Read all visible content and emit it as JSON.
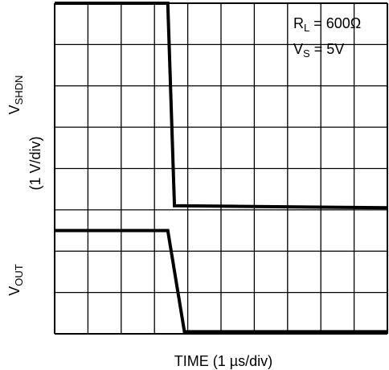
{
  "chart_data": {
    "type": "line",
    "title": "",
    "xlabel": "TIME (1 µs/div)",
    "ylabel_top": "V",
    "ylabel_top_sub": "SHDN",
    "ylabel_scale": "(1 V/div)",
    "ylabel_bottom": "V",
    "ylabel_bottom_sub": "OUT",
    "x_unit": "div",
    "y_unit": "div",
    "xlim": [
      0,
      10
    ],
    "ylim": [
      0,
      8
    ],
    "grid": true,
    "annotations": [
      {
        "main": "R",
        "sub": "L",
        "rest": " = 600Ω"
      },
      {
        "main": "V",
        "sub": "S",
        "rest": " = 5V"
      }
    ],
    "series": [
      {
        "x": [
          0,
          3.4,
          3.6,
          10
        ],
        "y": [
          8,
          8,
          3.1,
          3.05
        ]
      },
      {
        "x": [
          0,
          3.4,
          3.9,
          10
        ],
        "y": [
          2.5,
          2.5,
          0.05,
          0.05
        ]
      }
    ]
  }
}
